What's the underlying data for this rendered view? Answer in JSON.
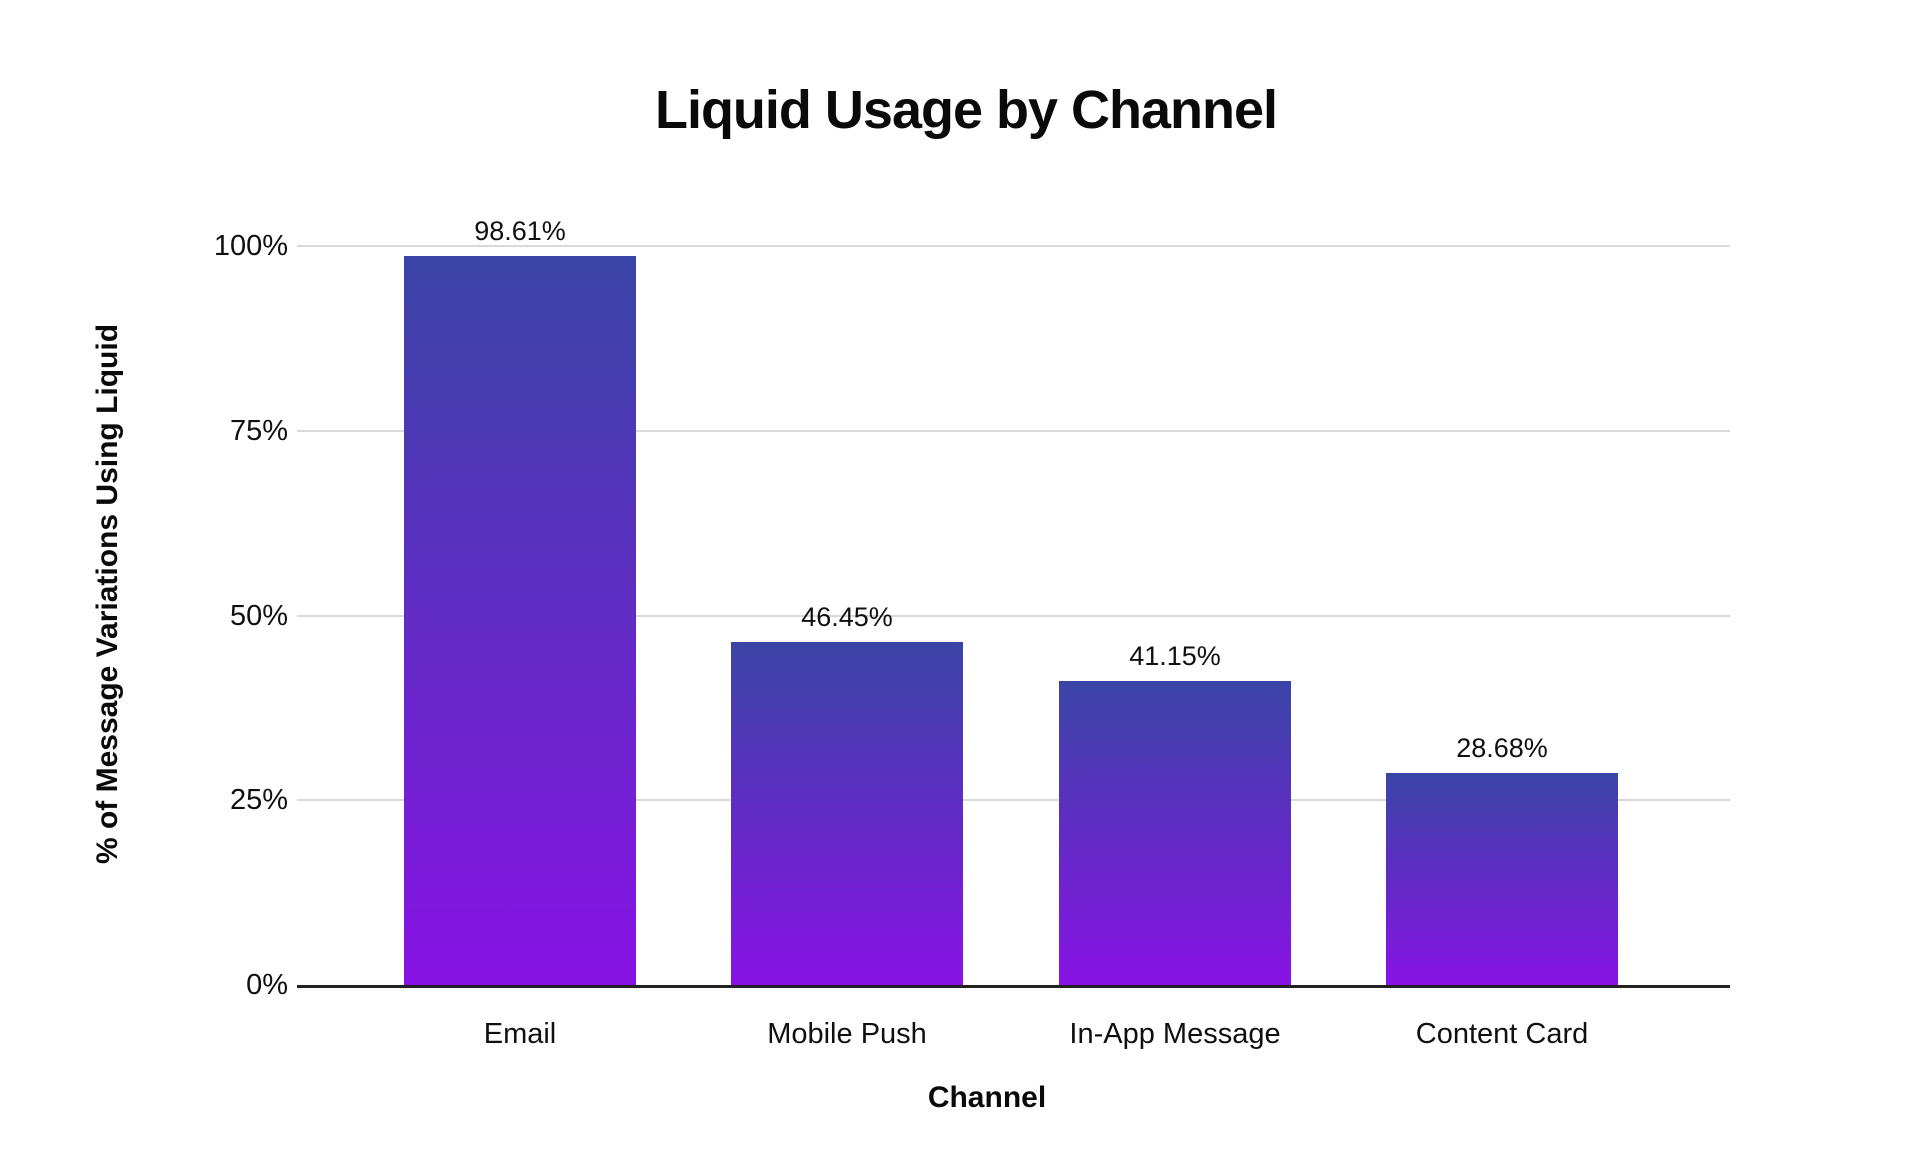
{
  "page": {
    "background": "#FFFFFF"
  },
  "chart_data": {
    "type": "bar",
    "title": "Liquid Usage by Channel",
    "xlabel": "Channel",
    "ylabel": "% of Message Variations Using Liquid",
    "categories": [
      "Email",
      "Mobile Push",
      "In-App Message",
      "Content Card"
    ],
    "values": [
      98.61,
      46.45,
      41.15,
      28.68
    ],
    "value_labels": [
      "98.61%",
      "46.45%",
      "41.15%",
      "28.68%"
    ],
    "yticks": [
      {
        "label": "0%",
        "value": 0
      },
      {
        "label": "25%",
        "value": 25
      },
      {
        "label": "50%",
        "value": 50
      },
      {
        "label": "75%",
        "value": 75
      },
      {
        "label": "100%",
        "value": 100
      }
    ],
    "ylim": [
      0,
      100
    ],
    "grid": "horizontal gridlines at 25% intervals",
    "legend": "none",
    "colors": {
      "bar_gradient_top": "#3A45A6",
      "bar_gradient_bottom": "#8812E4",
      "gridline": "#D9D9D9",
      "axis_line": "#222222",
      "text": "#101010",
      "background": "#FFFFFF"
    }
  }
}
